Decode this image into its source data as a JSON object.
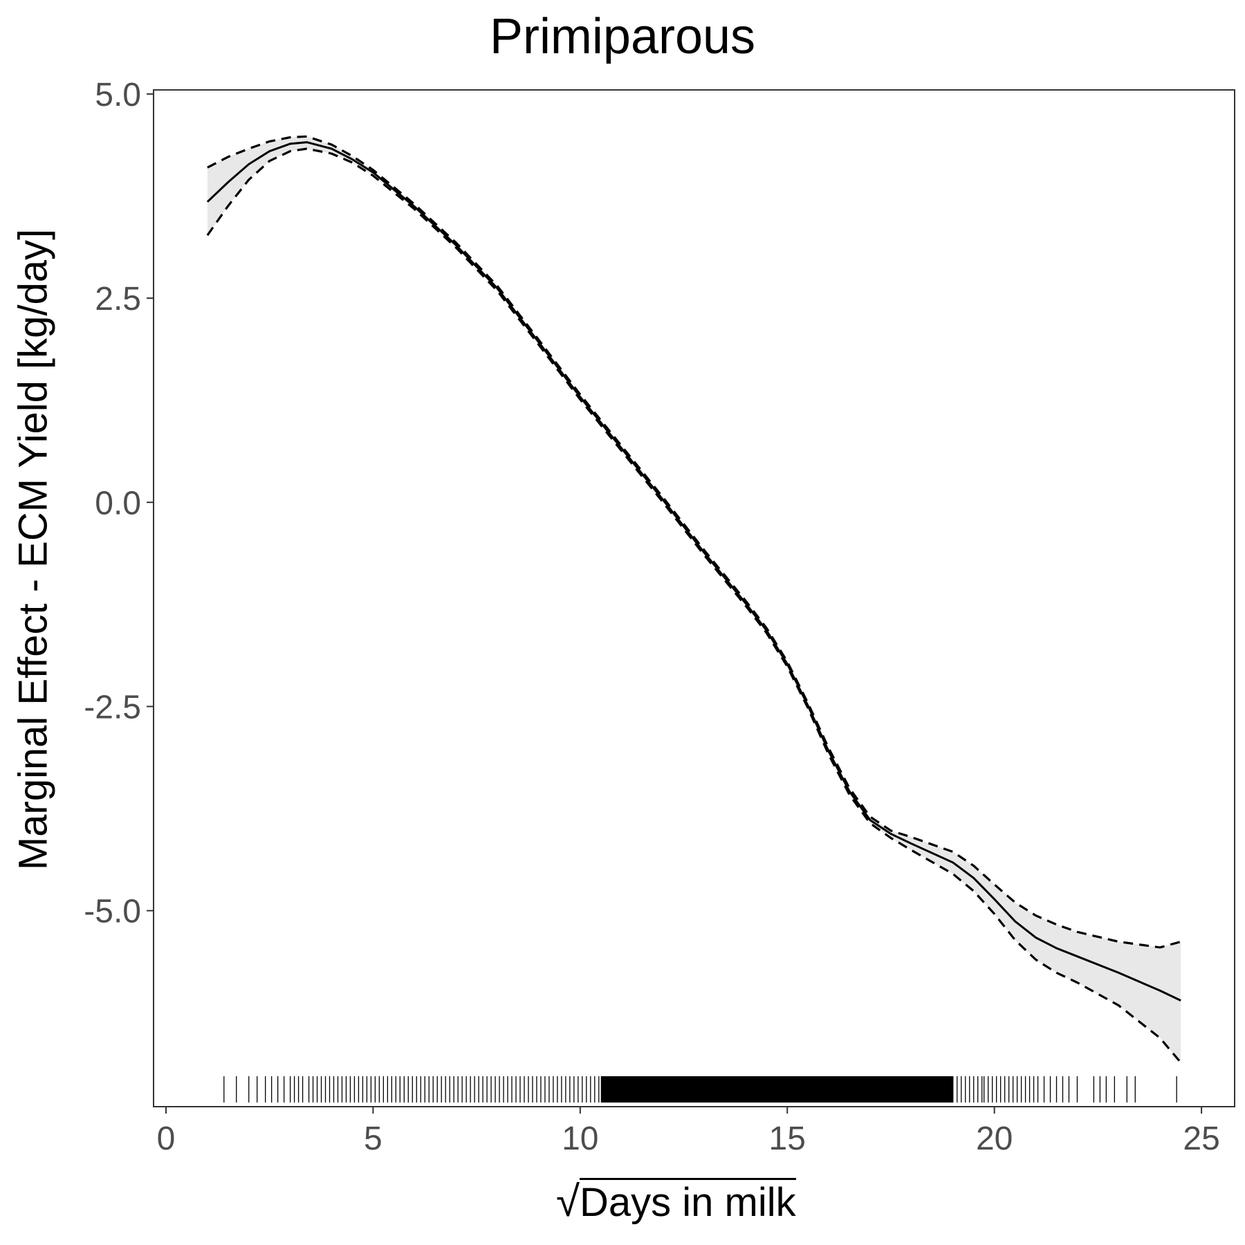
{
  "chart_data": {
    "type": "line",
    "title": "Primiparous",
    "xlabel_root": "√",
    "xlabel": "Days in milk",
    "ylabel": "Marginal Effect - ECM Yield [kg/day]",
    "xlim": [
      -0.3,
      25.8
    ],
    "ylim": [
      -7.4,
      5.05
    ],
    "x_ticks": [
      0,
      5,
      10,
      15,
      20,
      25
    ],
    "y_ticks": [
      5.0,
      2.5,
      0.0,
      -2.5,
      -5.0
    ],
    "y_tick_labels": [
      "5.0",
      "2.5",
      "0.0",
      "-2.5",
      "-5.0"
    ],
    "x_tick_labels": [
      "0",
      "5",
      "10",
      "15",
      "20",
      "25"
    ],
    "grid": false,
    "series": [
      {
        "role": "estimate",
        "style": "solid",
        "x": [
          1.0,
          1.5,
          2.0,
          2.5,
          3.0,
          3.4,
          4.0,
          4.5,
          5.0,
          6.0,
          7.0,
          8.0,
          9.0,
          10.0,
          11.0,
          12.0,
          13.0,
          14.0,
          14.5,
          15.0,
          15.5,
          16.0,
          16.5,
          17.0,
          17.5,
          18.0,
          19.0,
          19.5,
          20.0,
          20.5,
          21.0,
          21.5,
          22.0,
          23.0,
          24.0,
          24.5
        ],
        "y": [
          3.68,
          3.92,
          4.14,
          4.3,
          4.39,
          4.41,
          4.33,
          4.2,
          4.04,
          3.62,
          3.15,
          2.62,
          1.96,
          1.29,
          0.66,
          0.03,
          -0.62,
          -1.24,
          -1.57,
          -1.98,
          -2.49,
          -3.05,
          -3.54,
          -3.89,
          -4.06,
          -4.18,
          -4.41,
          -4.6,
          -4.86,
          -5.13,
          -5.33,
          -5.46,
          -5.56,
          -5.76,
          -5.98,
          -6.1
        ]
      },
      {
        "role": "upper-ci",
        "style": "dashed",
        "x": [
          1.0,
          1.5,
          2.0,
          2.5,
          3.0,
          3.4,
          4.0,
          4.5,
          5.0,
          6.0,
          7.0,
          8.0,
          9.0,
          10.0,
          11.0,
          12.0,
          13.0,
          14.0,
          14.5,
          15.0,
          15.5,
          16.0,
          16.5,
          17.0,
          17.5,
          18.0,
          19.0,
          19.5,
          20.0,
          20.5,
          21.0,
          21.5,
          22.0,
          23.0,
          24.0,
          24.5
        ],
        "y": [
          4.1,
          4.23,
          4.33,
          4.42,
          4.47,
          4.48,
          4.38,
          4.24,
          4.07,
          3.65,
          3.18,
          2.65,
          1.99,
          1.32,
          0.69,
          0.06,
          -0.59,
          -1.21,
          -1.54,
          -1.95,
          -2.46,
          -3.01,
          -3.5,
          -3.85,
          -4.02,
          -4.1,
          -4.28,
          -4.45,
          -4.68,
          -4.9,
          -5.06,
          -5.17,
          -5.26,
          -5.38,
          -5.45,
          -5.38
        ]
      },
      {
        "role": "lower-ci",
        "style": "dashed",
        "x": [
          1.0,
          1.5,
          2.0,
          2.5,
          3.0,
          3.4,
          4.0,
          4.5,
          5.0,
          6.0,
          7.0,
          8.0,
          9.0,
          10.0,
          11.0,
          12.0,
          13.0,
          14.0,
          14.5,
          15.0,
          15.5,
          16.0,
          16.5,
          17.0,
          17.5,
          18.0,
          19.0,
          19.5,
          20.0,
          20.5,
          21.0,
          21.5,
          22.0,
          23.0,
          24.0,
          24.5
        ],
        "y": [
          3.27,
          3.63,
          3.95,
          4.18,
          4.3,
          4.33,
          4.27,
          4.16,
          4.0,
          3.59,
          3.12,
          2.59,
          1.93,
          1.26,
          0.63,
          0.0,
          -0.65,
          -1.27,
          -1.6,
          -2.01,
          -2.52,
          -3.09,
          -3.58,
          -3.93,
          -4.11,
          -4.26,
          -4.55,
          -4.76,
          -5.04,
          -5.36,
          -5.6,
          -5.76,
          -5.88,
          -6.16,
          -6.56,
          -6.86
        ]
      }
    ],
    "rug_x": [
      1.4,
      1.7,
      2.0,
      2.2,
      2.4,
      2.55,
      2.7,
      2.85,
      3.0,
      3.1,
      3.2,
      3.3,
      3.45,
      3.55,
      3.65,
      3.75,
      3.85,
      3.95,
      4.05,
      4.15,
      4.25,
      4.35,
      4.45,
      4.55,
      4.65,
      4.75,
      4.85,
      4.95,
      5.05,
      5.15,
      5.25,
      5.35,
      5.45,
      5.55,
      5.65,
      5.75,
      5.85,
      5.95,
      6.05,
      6.15,
      6.25,
      6.35,
      6.45,
      6.55,
      6.65,
      6.75,
      6.85,
      6.95,
      7.05,
      7.15,
      7.25,
      7.35,
      7.45,
      7.55,
      7.65,
      7.75,
      7.85,
      7.95,
      8.05,
      8.15,
      8.25,
      8.35,
      8.45,
      8.55,
      8.65,
      8.75,
      8.85,
      8.95,
      9.05,
      9.15,
      9.25,
      9.35,
      9.45,
      9.55,
      9.65,
      9.75,
      9.85,
      9.95,
      10.05,
      10.15,
      10.25,
      10.35,
      10.45,
      10.55,
      19.0,
      19.1,
      19.2,
      19.3,
      19.4,
      19.5,
      19.6,
      19.7,
      19.75,
      19.85,
      19.95,
      20.05,
      20.15,
      20.25,
      20.35,
      20.45,
      20.55,
      20.65,
      20.75,
      20.85,
      20.95,
      21.05,
      21.2,
      21.35,
      21.5,
      21.65,
      21.8,
      22.0,
      22.4,
      22.55,
      22.7,
      22.9,
      23.2,
      23.4,
      24.4
    ],
    "rug_dense_range": [
      10.5,
      19.0
    ]
  }
}
